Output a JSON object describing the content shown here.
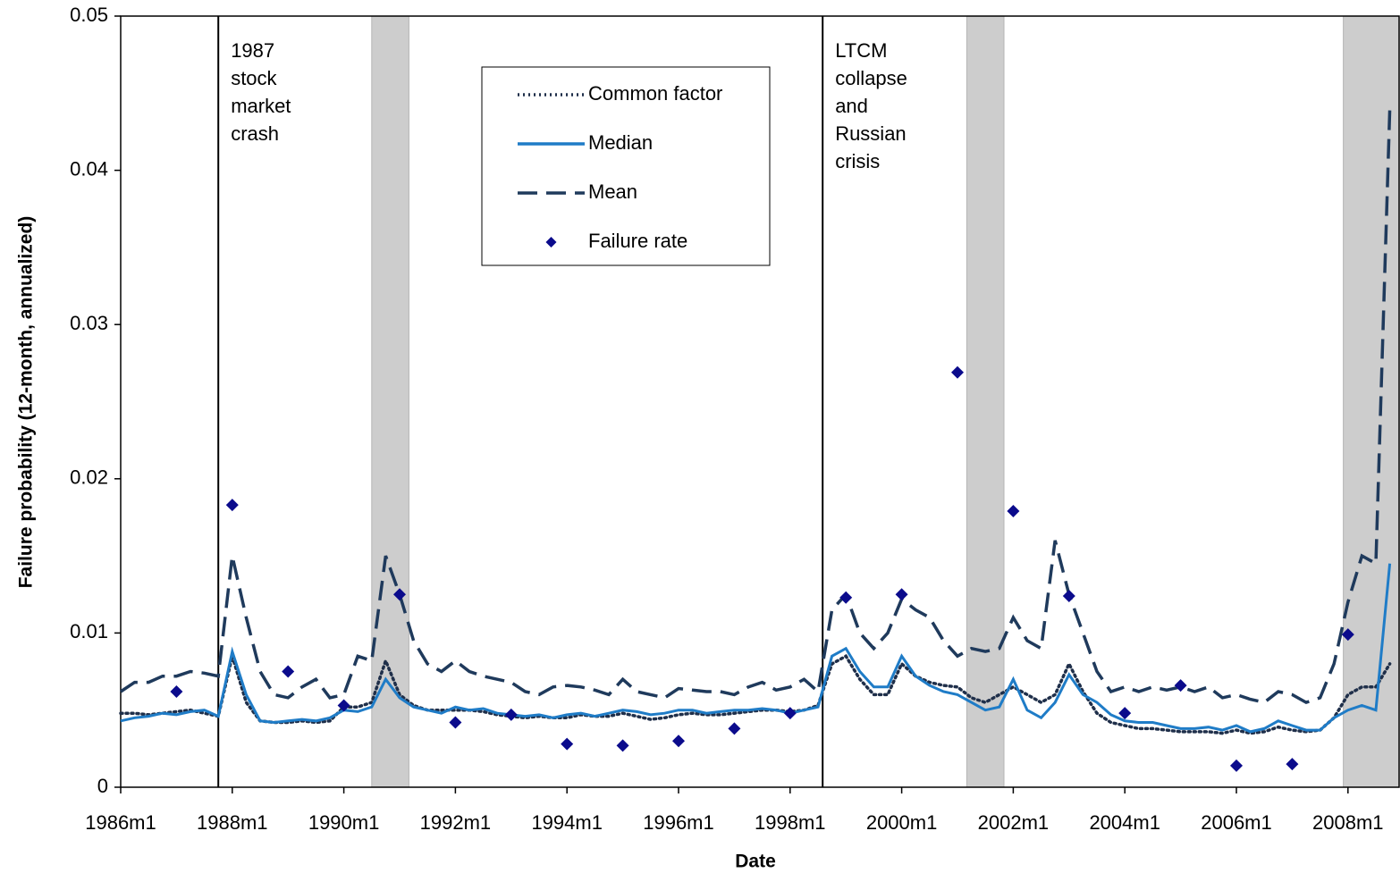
{
  "chart_data": {
    "type": "line",
    "x_label": "Date",
    "y_label": "Failure probability (12-month, annualized)",
    "xlim": [
      "1986m1",
      "2008m12"
    ],
    "xticks": [
      "1986m1",
      "1988m1",
      "1990m1",
      "1992m1",
      "1994m1",
      "1996m1",
      "1998m1",
      "2000m1",
      "2002m1",
      "2004m1",
      "2006m1",
      "2008m1"
    ],
    "ylim": [
      0,
      0.05
    ],
    "yticks": [
      0,
      0.01,
      0.02,
      0.03,
      0.04,
      0.05
    ],
    "legend": "upper center",
    "shaded_periods": [
      [
        "1990m7",
        "1991m3"
      ],
      [
        "2001m3",
        "2001m11"
      ],
      [
        "2007m12",
        "2008m12"
      ]
    ],
    "shade_color": "#cdcdcd",
    "events": [
      {
        "x": "1987m10",
        "label": [
          "1987",
          "stock",
          "market",
          "crash"
        ]
      },
      {
        "x": "1998m8",
        "label": [
          "LTCM",
          "collapse",
          "and",
          "Russian",
          "crisis"
        ]
      }
    ],
    "x": [
      "1986m1",
      "1986m4",
      "1986m7",
      "1986m10",
      "1987m1",
      "1987m4",
      "1987m7",
      "1987m10",
      "1988m1",
      "1988m4",
      "1988m7",
      "1988m10",
      "1989m1",
      "1989m4",
      "1989m7",
      "1989m10",
      "1990m1",
      "1990m4",
      "1990m7",
      "1990m10",
      "1991m1",
      "1991m4",
      "1991m7",
      "1991m10",
      "1992m1",
      "1992m4",
      "1992m7",
      "1992m10",
      "1993m1",
      "1993m4",
      "1993m7",
      "1993m10",
      "1994m1",
      "1994m4",
      "1994m7",
      "1994m10",
      "1995m1",
      "1995m4",
      "1995m7",
      "1995m10",
      "1996m1",
      "1996m4",
      "1996m7",
      "1996m10",
      "1997m1",
      "1997m4",
      "1997m7",
      "1997m10",
      "1998m1",
      "1998m4",
      "1998m7",
      "1998m10",
      "1999m1",
      "1999m4",
      "1999m7",
      "1999m10",
      "2000m1",
      "2000m4",
      "2000m7",
      "2000m10",
      "2001m1",
      "2001m4",
      "2001m7",
      "2001m10",
      "2002m1",
      "2002m4",
      "2002m7",
      "2002m10",
      "2003m1",
      "2003m4",
      "2003m7",
      "2003m10",
      "2004m1",
      "2004m4",
      "2004m7",
      "2004m10",
      "2005m1",
      "2005m4",
      "2005m7",
      "2005m10",
      "2006m1",
      "2006m4",
      "2006m7",
      "2006m10",
      "2007m1",
      "2007m4",
      "2007m7",
      "2007m10",
      "2008m1",
      "2008m4",
      "2008m7",
      "2008m10"
    ],
    "series": [
      {
        "name": "Common factor",
        "color": "#1f2f4a",
        "style": "dotted",
        "values": [
          0.0048,
          0.0048,
          0.0047,
          0.0048,
          0.0049,
          0.005,
          0.0048,
          0.0046,
          0.0085,
          0.0055,
          0.0043,
          0.0042,
          0.0042,
          0.0043,
          0.0042,
          0.0043,
          0.0052,
          0.0052,
          0.0055,
          0.0082,
          0.006,
          0.0053,
          0.005,
          0.005,
          0.005,
          0.005,
          0.0049,
          0.0047,
          0.0046,
          0.0045,
          0.0046,
          0.0045,
          0.0045,
          0.0047,
          0.0046,
          0.0046,
          0.0048,
          0.0046,
          0.0044,
          0.0045,
          0.0047,
          0.0048,
          0.0047,
          0.0047,
          0.0048,
          0.0049,
          0.005,
          0.005,
          0.0049,
          0.005,
          0.0053,
          0.008,
          0.0085,
          0.007,
          0.006,
          0.006,
          0.008,
          0.0072,
          0.0068,
          0.0066,
          0.0065,
          0.0058,
          0.0055,
          0.006,
          0.0065,
          0.006,
          0.0055,
          0.006,
          0.008,
          0.0062,
          0.0048,
          0.0042,
          0.004,
          0.0038,
          0.0038,
          0.0037,
          0.0036,
          0.0036,
          0.0036,
          0.0035,
          0.0037,
          0.0035,
          0.0036,
          0.0039,
          0.0037,
          0.0036,
          0.0037,
          0.0045,
          0.006,
          0.0065,
          0.0065,
          0.008
        ]
      },
      {
        "name": "Median",
        "color": "#1f7cc7",
        "style": "solid",
        "values": [
          0.0043,
          0.0045,
          0.0046,
          0.0048,
          0.0047,
          0.0049,
          0.005,
          0.0046,
          0.0088,
          0.006,
          0.0043,
          0.0042,
          0.0043,
          0.0044,
          0.0043,
          0.0045,
          0.005,
          0.0049,
          0.0052,
          0.007,
          0.0058,
          0.0052,
          0.005,
          0.0048,
          0.0052,
          0.005,
          0.0051,
          0.0048,
          0.0047,
          0.0046,
          0.0047,
          0.0045,
          0.0047,
          0.0048,
          0.0046,
          0.0048,
          0.005,
          0.0049,
          0.0047,
          0.0048,
          0.005,
          0.005,
          0.0048,
          0.0049,
          0.005,
          0.005,
          0.0051,
          0.005,
          0.0048,
          0.005,
          0.0052,
          0.0085,
          0.009,
          0.0075,
          0.0065,
          0.0065,
          0.0085,
          0.0072,
          0.0066,
          0.0062,
          0.006,
          0.0055,
          0.005,
          0.0052,
          0.007,
          0.005,
          0.0045,
          0.0055,
          0.0073,
          0.006,
          0.0055,
          0.0047,
          0.0043,
          0.0042,
          0.0042,
          0.004,
          0.0038,
          0.0038,
          0.0039,
          0.0037,
          0.004,
          0.0036,
          0.0038,
          0.0043,
          0.004,
          0.0037,
          0.0037,
          0.0045,
          0.005,
          0.0053,
          0.005,
          0.0145
        ]
      },
      {
        "name": "Mean",
        "color": "#1f3a5c",
        "style": "dashed",
        "values": [
          0.0062,
          0.0068,
          0.0068,
          0.0072,
          0.0072,
          0.0075,
          0.0074,
          0.0072,
          0.015,
          0.011,
          0.0075,
          0.006,
          0.0058,
          0.0065,
          0.007,
          0.0058,
          0.006,
          0.0085,
          0.0082,
          0.015,
          0.0125,
          0.0095,
          0.008,
          0.0075,
          0.0082,
          0.0075,
          0.0072,
          0.007,
          0.0068,
          0.0062,
          0.006,
          0.0065,
          0.0066,
          0.0065,
          0.0063,
          0.006,
          0.007,
          0.0062,
          0.006,
          0.0058,
          0.0064,
          0.0063,
          0.0062,
          0.0062,
          0.006,
          0.0065,
          0.0068,
          0.0063,
          0.0065,
          0.007,
          0.0062,
          0.0115,
          0.0125,
          0.01,
          0.009,
          0.01,
          0.0122,
          0.0115,
          0.011,
          0.0095,
          0.0085,
          0.009,
          0.0088,
          0.009,
          0.011,
          0.0095,
          0.009,
          0.016,
          0.0125,
          0.01,
          0.0075,
          0.0062,
          0.0065,
          0.0062,
          0.0065,
          0.0063,
          0.0065,
          0.0062,
          0.0065,
          0.0058,
          0.006,
          0.0057,
          0.0055,
          0.0062,
          0.006,
          0.0055,
          0.0058,
          0.008,
          0.012,
          0.015,
          0.0145,
          0.044
        ]
      },
      {
        "name": "Failure rate",
        "color": "#0b0b8c",
        "style": "marker",
        "x": [
          "1987m1",
          "1988m1",
          "1989m1",
          "1990m1",
          "1991m1",
          "1992m1",
          "1993m1",
          "1994m1",
          "1995m1",
          "1996m1",
          "1997m1",
          "1998m1",
          "1999m1",
          "2000m1",
          "2001m1",
          "2002m1",
          "2003m1",
          "2004m1",
          "2005m1",
          "2006m1",
          "2007m1",
          "2008m1"
        ],
        "values": [
          0.0062,
          0.0183,
          0.0075,
          0.0053,
          0.0125,
          0.0042,
          0.0047,
          0.0028,
          0.0027,
          0.003,
          0.0038,
          0.0048,
          0.0123,
          0.0125,
          0.0269,
          0.0179,
          0.0124,
          0.0048,
          0.0066,
          0.0014,
          0.0015,
          0.0099
        ]
      }
    ]
  }
}
